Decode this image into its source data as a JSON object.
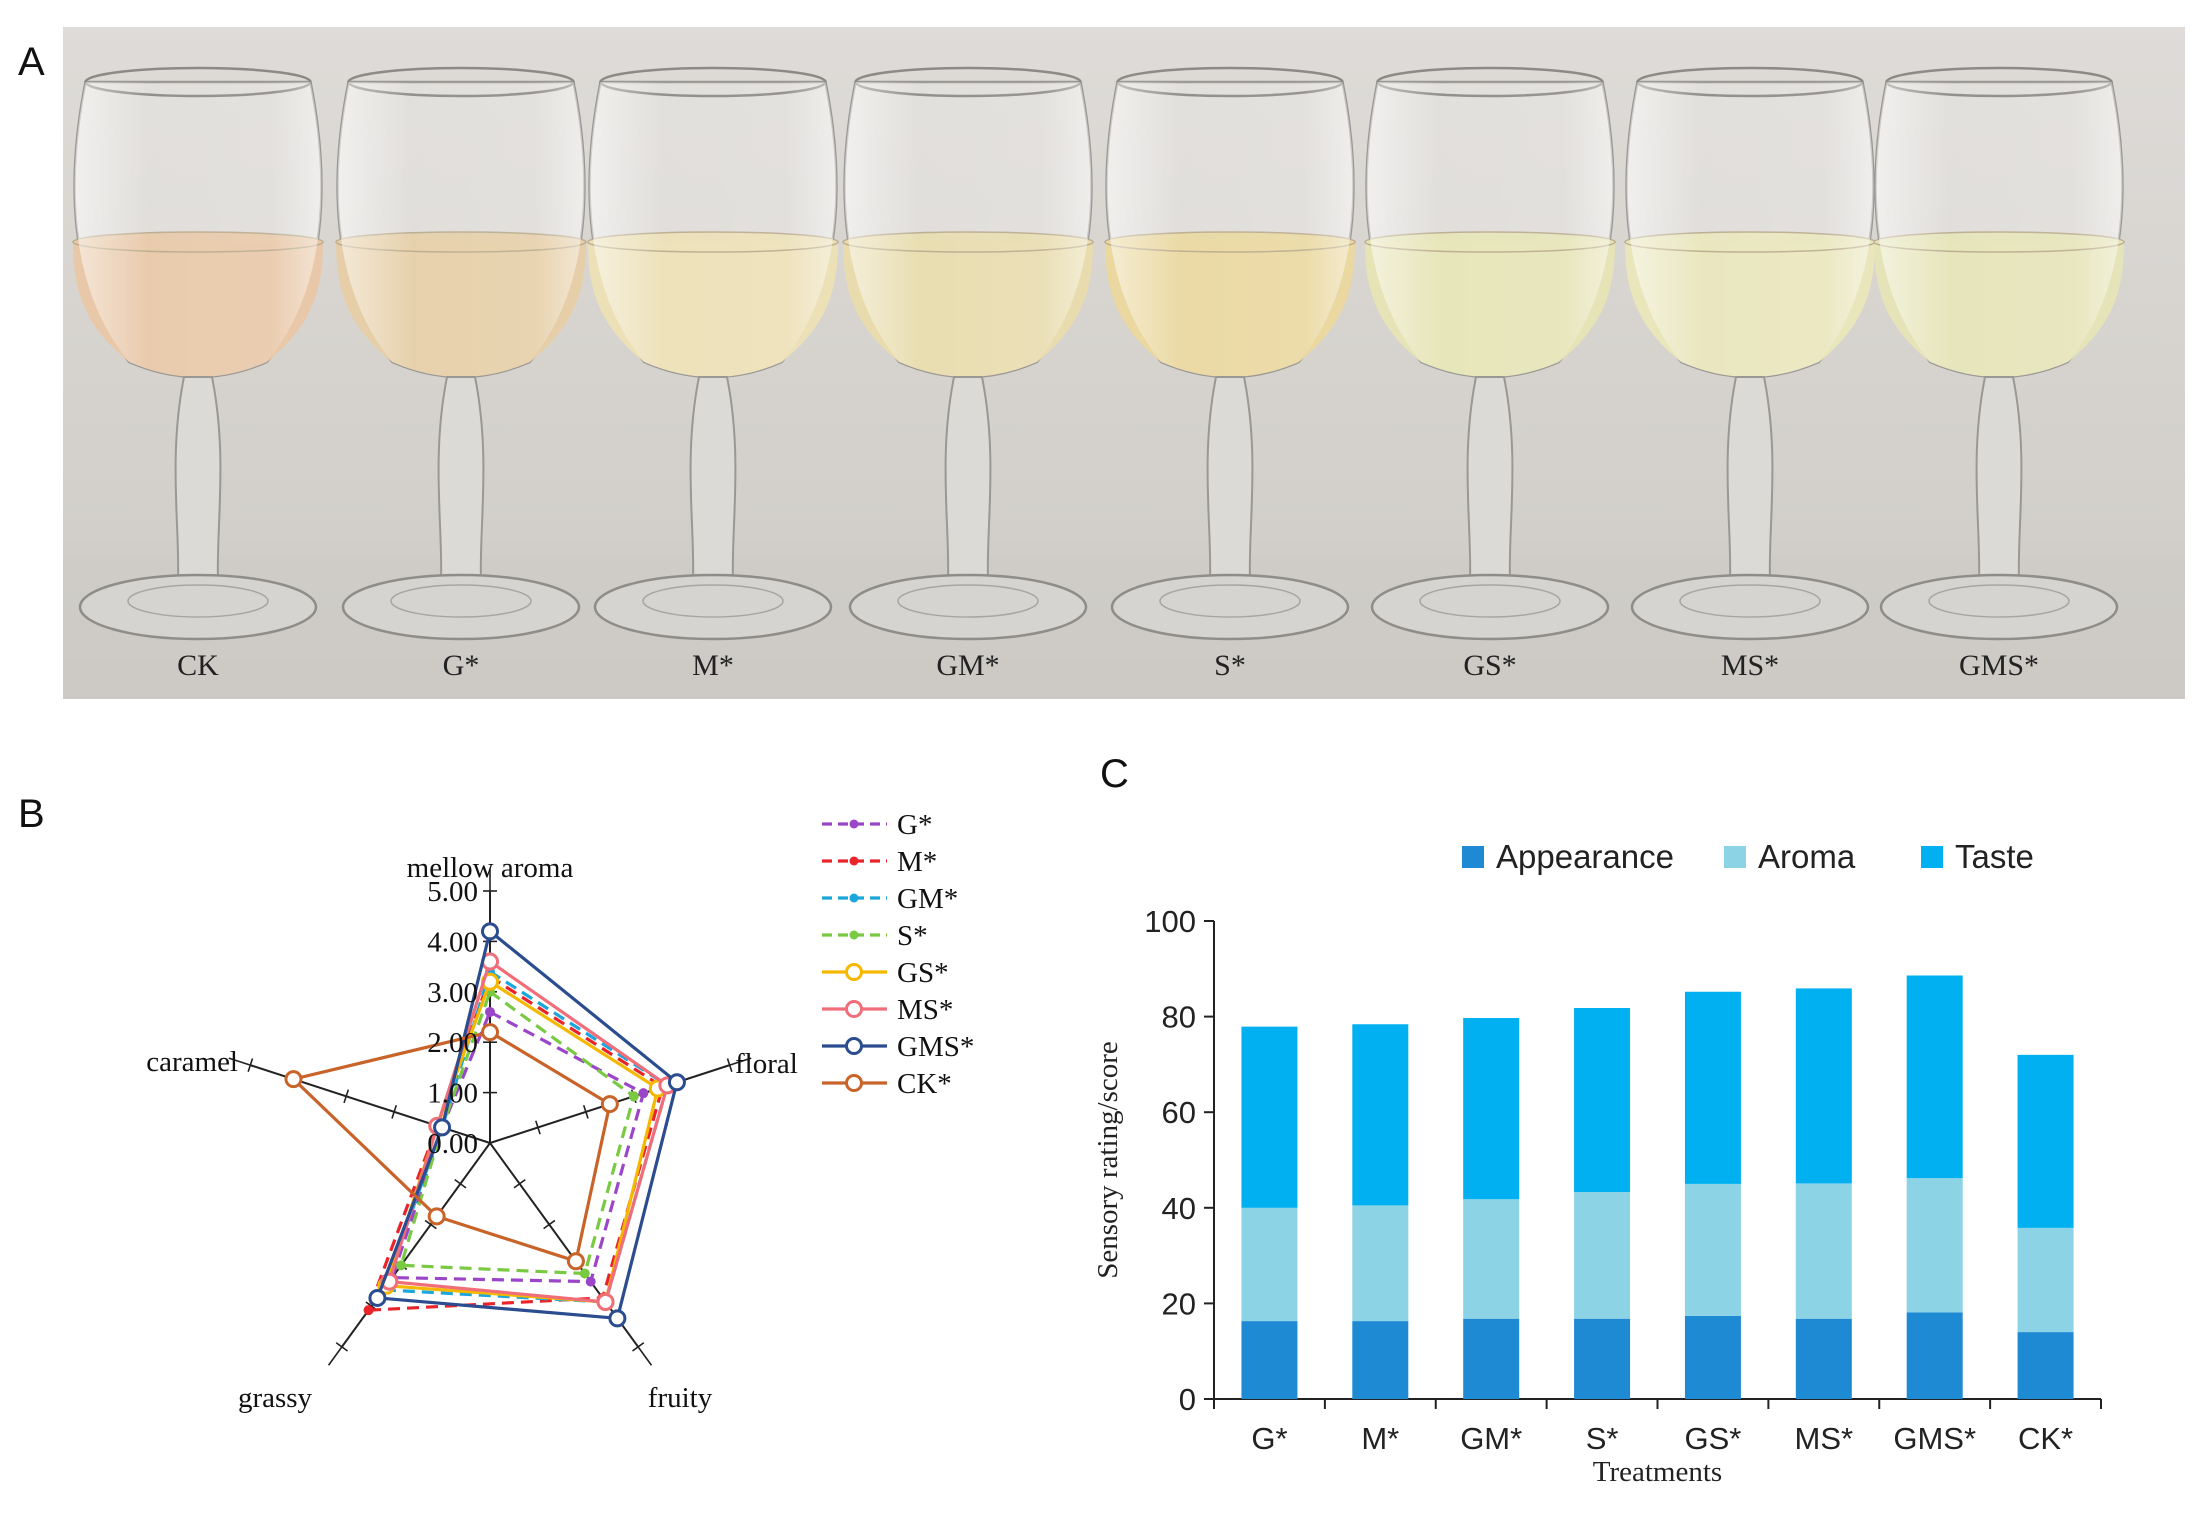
{
  "panels": {
    "a": "A",
    "b": "B",
    "c": "C"
  },
  "photo": {
    "glass_labels": [
      "CK",
      "G*",
      "M*",
      "GM*",
      "S*",
      "GS*",
      "MS*",
      "GMS*"
    ],
    "wine_colors": [
      "#e8c8a8",
      "#e6cfa8",
      "#ece0b6",
      "#e8dcae",
      "#ead8a0",
      "#e6e4b6",
      "#e9e6bc",
      "#e5e4b8"
    ],
    "background_color": "#d9d6d2"
  },
  "chart_data": [
    {
      "type": "radar",
      "axes": [
        "mellow aroma",
        "floral",
        "fruity",
        "grassy",
        "caramel"
      ],
      "ticks": [
        "5.00",
        "4.00",
        "3.00",
        "2.00",
        "1.00",
        "0.00"
      ],
      "rmax": 5,
      "series": [
        {
          "name": "G*",
          "values": [
            2.6,
            3.2,
            3.4,
            3.3,
            1.0
          ],
          "color": "#9b46c8",
          "dash": true
        },
        {
          "name": "M*",
          "values": [
            3.3,
            3.6,
            3.8,
            4.1,
            1.1
          ],
          "color": "#e8242a",
          "dash": true
        },
        {
          "name": "GM*",
          "values": [
            3.4,
            3.7,
            3.9,
            3.6,
            1.0
          ],
          "color": "#1ba6dc",
          "dash": true
        },
        {
          "name": "S*",
          "values": [
            3.0,
            3.0,
            3.2,
            3.0,
            1.0
          ],
          "color": "#7ac943",
          "dash": true
        },
        {
          "name": "GS*",
          "values": [
            3.2,
            3.5,
            3.9,
            3.5,
            1.1
          ],
          "color": "#f5b800",
          "dash": false
        },
        {
          "name": "MS*",
          "values": [
            3.6,
            3.7,
            3.9,
            3.4,
            1.1
          ],
          "color": "#f06e7a",
          "dash": false
        },
        {
          "name": "GMS*",
          "values": [
            4.2,
            3.9,
            4.3,
            3.8,
            1.0
          ],
          "color": "#2b4c8e",
          "dash": false
        },
        {
          "name": "CK*",
          "values": [
            2.2,
            2.5,
            2.9,
            1.8,
            4.1
          ],
          "color": "#c8642a",
          "dash": false
        }
      ]
    },
    {
      "type": "bar",
      "stacked": true,
      "categories": [
        "G*",
        "M*",
        "GM*",
        "S*",
        "GS*",
        "MS*",
        "GMS*",
        "CK*"
      ],
      "series": [
        {
          "name": "Appearance",
          "values": [
            16.3,
            16.3,
            16.8,
            16.8,
            17.4,
            16.8,
            18.1,
            14.0
          ],
          "color": "#1f8ad4"
        },
        {
          "name": "Aroma",
          "values": [
            23.7,
            24.2,
            25.0,
            26.5,
            27.6,
            28.3,
            28.1,
            21.8
          ],
          "color": "#8dd3e6"
        },
        {
          "name": "Taste",
          "values": [
            37.9,
            37.9,
            37.9,
            38.5,
            40.2,
            40.8,
            42.4,
            36.2
          ],
          "color": "#00b0f0"
        }
      ],
      "xlabel": "Treatments",
      "ylabel": "Sensory rating/score",
      "ylim": [
        0,
        100
      ],
      "yticks": [
        "0",
        "20",
        "40",
        "60",
        "80",
        "100"
      ],
      "legend": "top"
    }
  ]
}
